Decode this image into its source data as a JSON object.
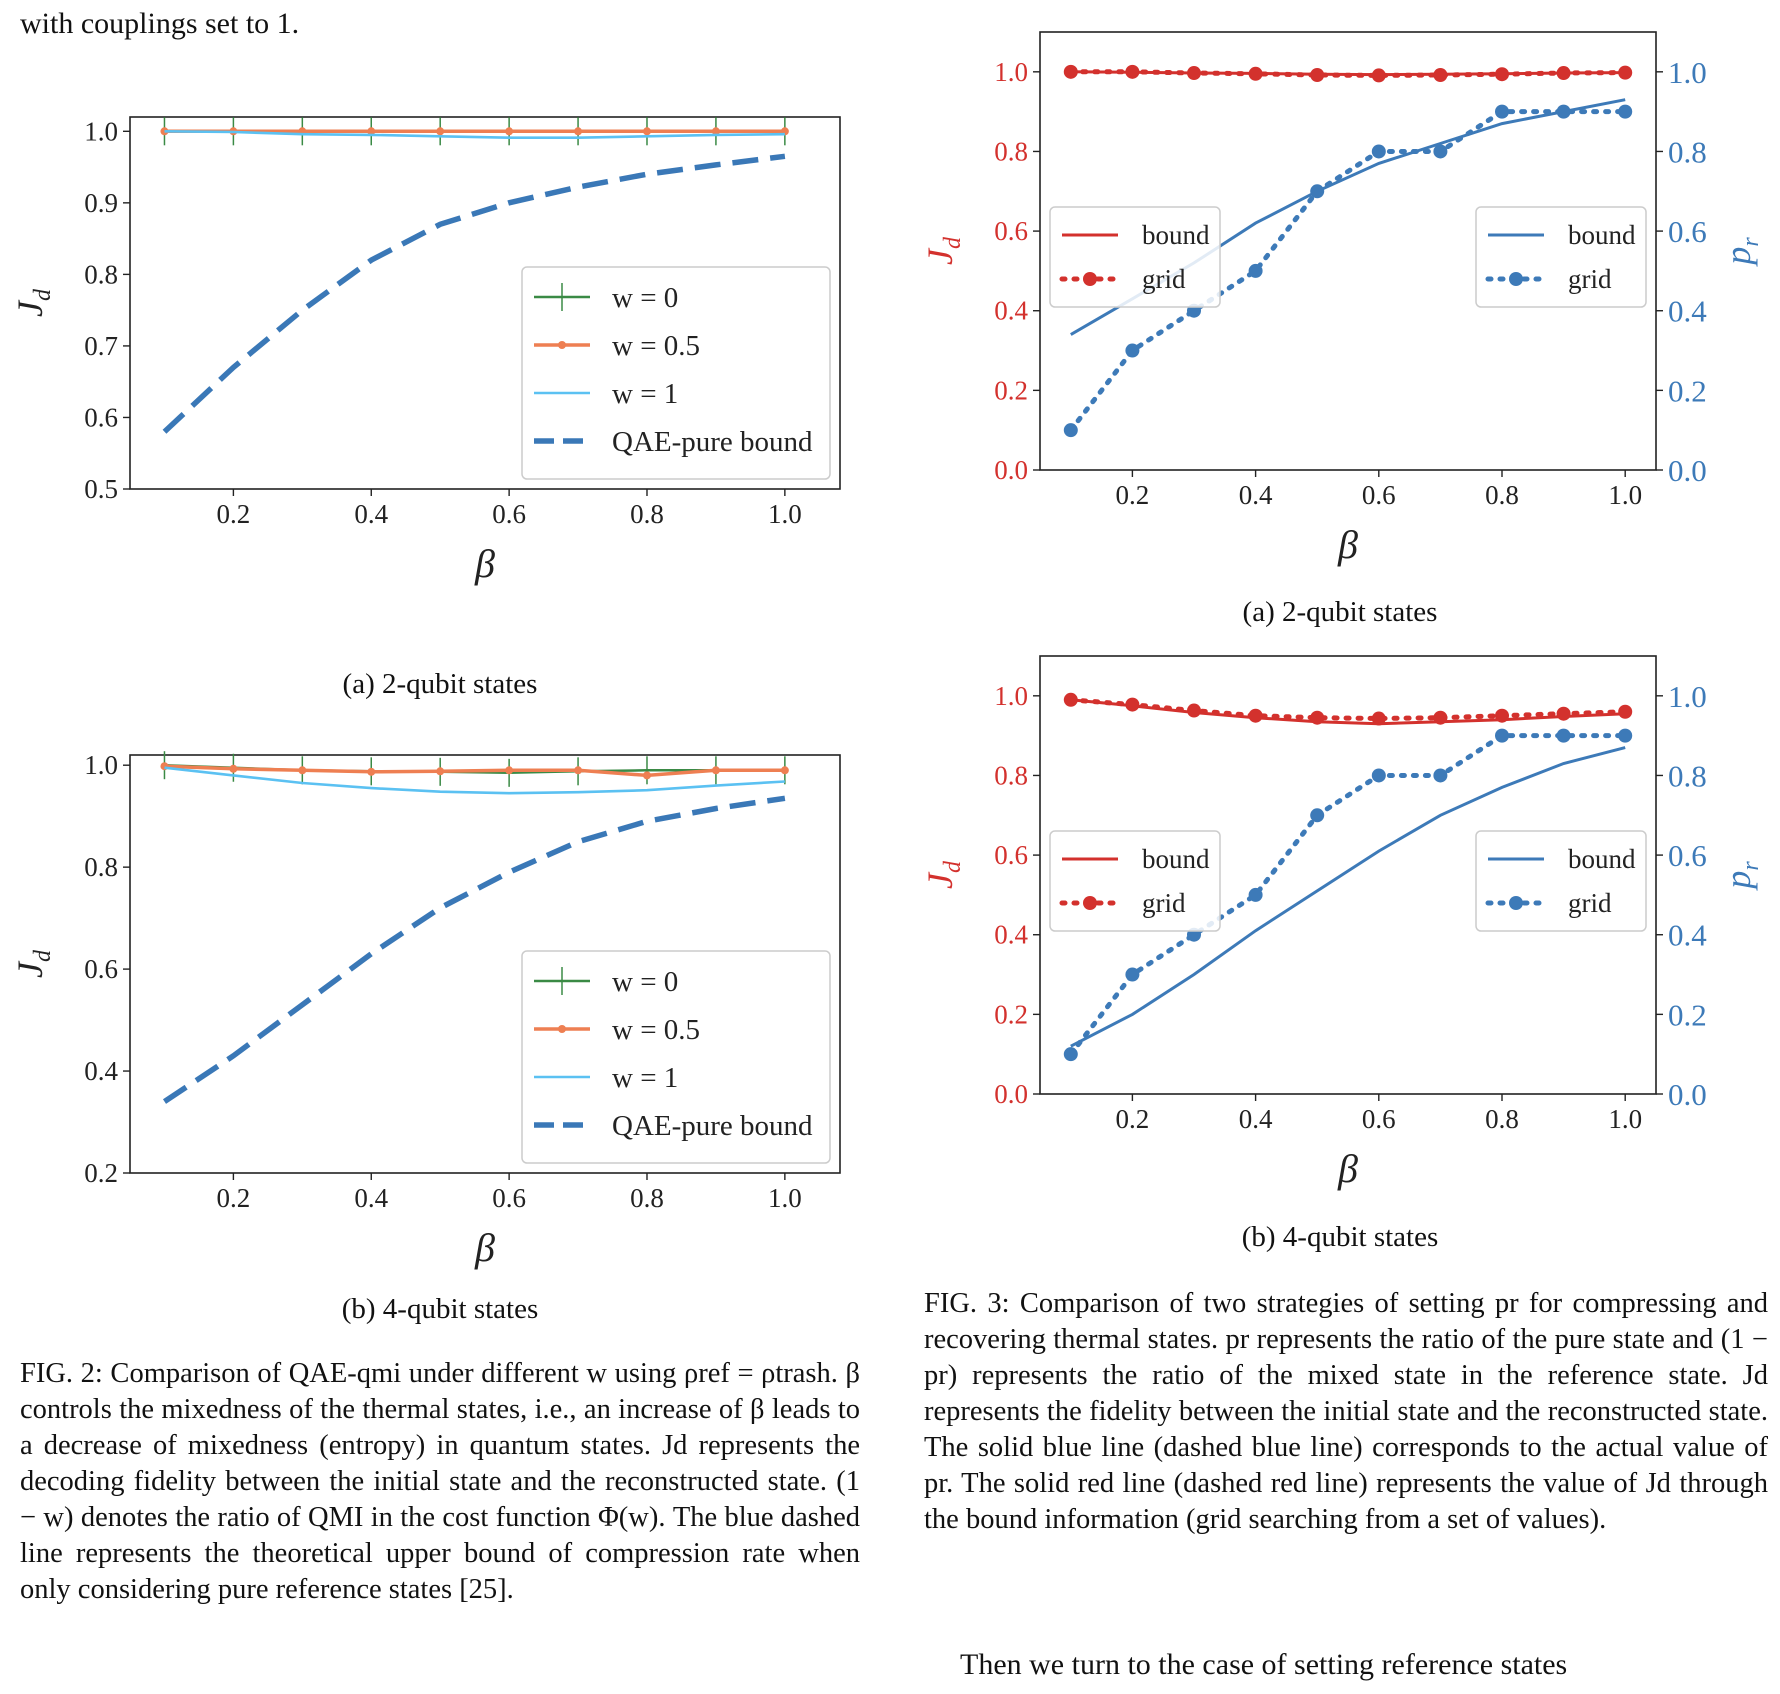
{
  "page": {
    "intro_text": "with couplings set to 1.",
    "outro_text": "Then we turn to the case of setting reference states",
    "colors": {
      "green": "#3a8a45",
      "orange": "#ee7f52",
      "light_blue": "#5bc1f2",
      "dashed_blue": "#3a78b7",
      "red": "#d3312d",
      "blue": "#3d7ab8"
    }
  },
  "fig2": {
    "subcaption_a": "(a) 2-qubit states",
    "subcaption_b": "(b) 4-qubit states",
    "caption": "FIG. 2: Comparison of QAE-qmi under different w using ρref = ρtrash. β controls the mixedness of the thermal states, i.e., an increase of β leads to a decrease of mixedness (entropy) in quantum states. Jd represents the decoding fidelity between the initial state and the reconstructed state. (1 − w) denotes the ratio of QMI in the cost function Φ(w). The blue dashed line represents the theoretical upper bound of compression rate when only considering pure reference states [25]."
  },
  "fig3": {
    "subcaption_a": "(a) 2-qubit states",
    "subcaption_b": "(b) 4-qubit states",
    "caption": "FIG. 3: Comparison of two strategies of setting pr for compressing and recovering thermal states. pr represents the ratio of the pure state and (1 − pr) represents the ratio of the mixed state in the reference state. Jd represents the fidelity between the initial state and the reconstructed state. The solid blue line (dashed blue line) corresponds to the actual value of pr. The solid red line (dashed red line) represents the value of Jd through the bound information (grid searching from a set of values)."
  },
  "chart_data": [
    {
      "id": "fig2a",
      "type": "line",
      "xlabel": "β",
      "ylabel": "Jd",
      "xlim": [
        0.05,
        1.08
      ],
      "ylim": [
        0.5,
        1.02
      ],
      "xticks": [
        0.2,
        0.4,
        0.6,
        0.8,
        1.0
      ],
      "xtick_labels": [
        "0.2",
        "0.4",
        "0.6",
        "0.8",
        "1.0"
      ],
      "yticks": [
        0.5,
        0.6,
        0.7,
        0.8,
        0.9,
        1.0
      ],
      "ytick_labels": [
        "0.5",
        "0.6",
        "0.7",
        "0.8",
        "0.9",
        "1.0"
      ],
      "legend_position": "lower-right",
      "x": [
        0.1,
        0.2,
        0.3,
        0.4,
        0.5,
        0.6,
        0.7,
        0.8,
        0.9,
        1.0
      ],
      "series": [
        {
          "name": "w = 0",
          "color": "#3a8a45",
          "style": "errorbar",
          "values": [
            1.0,
            1.0,
            1.0,
            1.0,
            1.0,
            1.0,
            1.0,
            1.0,
            1.0,
            1.0
          ]
        },
        {
          "name": "w = 0.5",
          "color": "#ee7f52",
          "style": "marker",
          "values": [
            1.0,
            1.0,
            1.0,
            1.0,
            1.0,
            1.0,
            1.0,
            1.0,
            1.0,
            1.0
          ]
        },
        {
          "name": "w = 1",
          "color": "#5bc1f2",
          "style": "solid",
          "values": [
            1.0,
            0.999,
            0.996,
            0.995,
            0.993,
            0.991,
            0.991,
            0.993,
            0.995,
            0.996
          ]
        },
        {
          "name": "QAE-pure bound",
          "color": "#3a78b7",
          "style": "dashed",
          "values": [
            0.58,
            0.67,
            0.75,
            0.82,
            0.87,
            0.9,
            0.922,
            0.94,
            0.953,
            0.965
          ]
        }
      ]
    },
    {
      "id": "fig2b",
      "type": "line",
      "xlabel": "β",
      "ylabel": "Jd",
      "xlim": [
        0.05,
        1.08
      ],
      "ylim": [
        0.2,
        1.02
      ],
      "xticks": [
        0.2,
        0.4,
        0.6,
        0.8,
        1.0
      ],
      "xtick_labels": [
        "0.2",
        "0.4",
        "0.6",
        "0.8",
        "1.0"
      ],
      "yticks": [
        0.2,
        0.4,
        0.6,
        0.8,
        1.0
      ],
      "ytick_labels": [
        "0.2",
        "0.4",
        "0.6",
        "0.8",
        "1.0"
      ],
      "legend_position": "lower-right",
      "x": [
        0.1,
        0.2,
        0.3,
        0.4,
        0.5,
        0.6,
        0.7,
        0.8,
        0.9,
        1.0
      ],
      "series": [
        {
          "name": "w = 0",
          "color": "#3a8a45",
          "style": "errorbar",
          "values": [
            1.0,
            0.995,
            0.99,
            0.988,
            0.987,
            0.985,
            0.988,
            0.99,
            0.99,
            0.99
          ]
        },
        {
          "name": "w = 0.5",
          "color": "#ee7f52",
          "style": "marker",
          "values": [
            0.998,
            0.993,
            0.99,
            0.987,
            0.988,
            0.99,
            0.99,
            0.98,
            0.99,
            0.99
          ]
        },
        {
          "name": "w = 1",
          "color": "#5bc1f2",
          "style": "solid",
          "values": [
            0.995,
            0.98,
            0.965,
            0.955,
            0.948,
            0.945,
            0.947,
            0.951,
            0.96,
            0.968
          ]
        },
        {
          "name": "QAE-pure bound",
          "color": "#3a78b7",
          "style": "dashed",
          "values": [
            0.34,
            0.43,
            0.53,
            0.63,
            0.72,
            0.79,
            0.85,
            0.89,
            0.915,
            0.935
          ]
        }
      ]
    },
    {
      "id": "fig3a",
      "type": "line",
      "xlabel": "β",
      "ylabel": "Jd",
      "ylabel_right": "pr",
      "xlim": [
        0.05,
        1.05
      ],
      "ylim": [
        0.0,
        1.1
      ],
      "ylim_right": [
        0.0,
        1.1
      ],
      "xticks": [
        0.2,
        0.4,
        0.6,
        0.8,
        1.0
      ],
      "xtick_labels": [
        "0.2",
        "0.4",
        "0.6",
        "0.8",
        "1.0"
      ],
      "yticks": [
        0.0,
        0.2,
        0.4,
        0.6,
        0.8,
        1.0
      ],
      "ytick_labels": [
        "0.0",
        "0.2",
        "0.4",
        "0.6",
        "0.8",
        "1.0"
      ],
      "yticks_right": [
        0.0,
        0.2,
        0.4,
        0.6,
        0.8,
        1.0
      ],
      "ytick_labels_right": [
        "0.0",
        "0.2",
        "0.4",
        "0.6",
        "0.8",
        "1.0"
      ],
      "legend_left": {
        "position": "center-left",
        "entries": [
          "bound",
          "grid"
        ]
      },
      "legend_right": {
        "position": "center-right",
        "entries": [
          "bound",
          "grid"
        ]
      },
      "x": [
        0.1,
        0.2,
        0.3,
        0.4,
        0.5,
        0.6,
        0.7,
        0.8,
        0.9,
        1.0
      ],
      "series": [
        {
          "name": "bound",
          "axis": "left",
          "color": "#d3312d",
          "style": "solid",
          "values": [
            1.0,
            0.999,
            0.997,
            0.996,
            0.994,
            0.993,
            0.994,
            0.995,
            0.997,
            0.998
          ]
        },
        {
          "name": "grid",
          "axis": "left",
          "color": "#d3312d",
          "style": "dotted-marker",
          "values": [
            1.0,
            1.0,
            0.997,
            0.995,
            0.992,
            0.991,
            0.992,
            0.994,
            0.997,
            0.998
          ]
        },
        {
          "name": "bound",
          "axis": "right",
          "color": "#3d7ab8",
          "style": "solid",
          "values": [
            0.34,
            0.43,
            0.52,
            0.62,
            0.7,
            0.77,
            0.82,
            0.87,
            0.9,
            0.93
          ]
        },
        {
          "name": "grid",
          "axis": "right",
          "color": "#3d7ab8",
          "style": "dotted-marker",
          "values": [
            0.1,
            0.3,
            0.4,
            0.5,
            0.7,
            0.8,
            0.8,
            0.9,
            0.9,
            0.9
          ]
        }
      ]
    },
    {
      "id": "fig3b",
      "type": "line",
      "xlabel": "β",
      "ylabel": "Jd",
      "ylabel_right": "pr",
      "xlim": [
        0.05,
        1.05
      ],
      "ylim": [
        0.0,
        1.1
      ],
      "ylim_right": [
        0.0,
        1.1
      ],
      "xticks": [
        0.2,
        0.4,
        0.6,
        0.8,
        1.0
      ],
      "xtick_labels": [
        "0.2",
        "0.4",
        "0.6",
        "0.8",
        "1.0"
      ],
      "yticks": [
        0.0,
        0.2,
        0.4,
        0.6,
        0.8,
        1.0
      ],
      "ytick_labels": [
        "0.0",
        "0.2",
        "0.4",
        "0.6",
        "0.8",
        "1.0"
      ],
      "yticks_right": [
        0.0,
        0.2,
        0.4,
        0.6,
        0.8,
        1.0
      ],
      "ytick_labels_right": [
        "0.0",
        "0.2",
        "0.4",
        "0.6",
        "0.8",
        "1.0"
      ],
      "legend_left": {
        "position": "center-left",
        "entries": [
          "bound",
          "grid"
        ]
      },
      "legend_right": {
        "position": "center-right",
        "entries": [
          "bound",
          "grid"
        ]
      },
      "x": [
        0.1,
        0.2,
        0.3,
        0.4,
        0.5,
        0.6,
        0.7,
        0.8,
        0.9,
        1.0
      ],
      "series": [
        {
          "name": "bound",
          "axis": "left",
          "color": "#d3312d",
          "style": "solid",
          "values": [
            0.99,
            0.975,
            0.958,
            0.945,
            0.935,
            0.93,
            0.935,
            0.94,
            0.948,
            0.955
          ]
        },
        {
          "name": "grid",
          "axis": "left",
          "color": "#d3312d",
          "style": "dotted-marker",
          "values": [
            0.99,
            0.978,
            0.963,
            0.95,
            0.945,
            0.943,
            0.945,
            0.95,
            0.955,
            0.96
          ]
        },
        {
          "name": "bound",
          "axis": "right",
          "color": "#3d7ab8",
          "style": "solid",
          "values": [
            0.12,
            0.2,
            0.3,
            0.41,
            0.51,
            0.61,
            0.7,
            0.77,
            0.83,
            0.87
          ]
        },
        {
          "name": "grid",
          "axis": "right",
          "color": "#3d7ab8",
          "style": "dotted-marker",
          "values": [
            0.1,
            0.3,
            0.4,
            0.5,
            0.7,
            0.8,
            0.8,
            0.9,
            0.9,
            0.9
          ]
        }
      ]
    }
  ]
}
